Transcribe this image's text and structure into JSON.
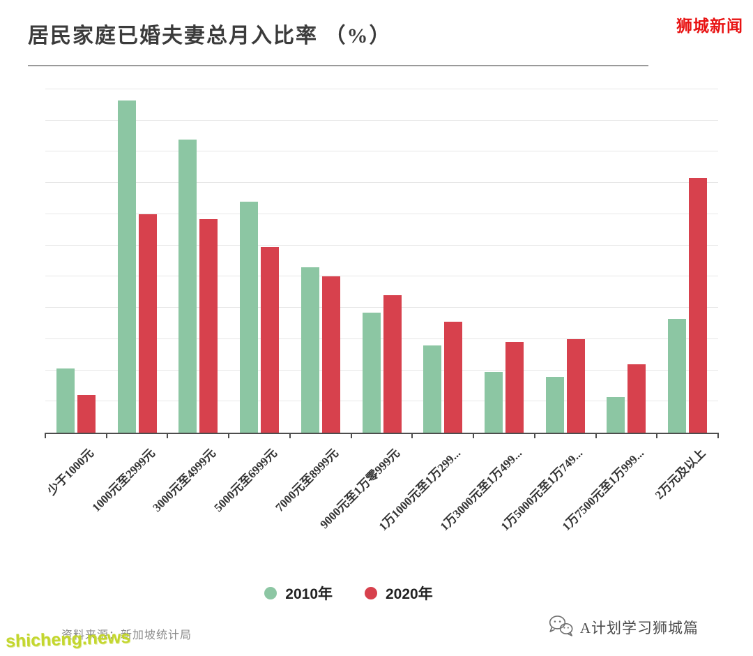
{
  "page": {
    "title": "居民家庭已婚夫妻总月入比率 （%）",
    "watermark_top_right": "狮城新闻",
    "watermark_bottom_left": "shicheng.news",
    "source_label": "资料来源：新加坡统计局",
    "footer_brand": "A计划学习狮城篇"
  },
  "chart_data": {
    "type": "bar",
    "title": "居民家庭已婚夫妻总月入比率 （%）",
    "categories": [
      "少于1000元",
      "1000元至2999元",
      "3000元至4999元",
      "5000元至6999元",
      "7000元至8999元",
      "9000元至1万零999元",
      "1万1000元至1万299...",
      "1万3000元至1万499...",
      "1万5000元至1万749...",
      "1万7500元至1万999...",
      "2万元及以上"
    ],
    "series": [
      {
        "name": "2010年",
        "color": "#8cc6a3",
        "values": [
          4.1,
          21.3,
          18.8,
          14.8,
          10.6,
          7.7,
          5.6,
          3.9,
          3.6,
          2.3,
          7.3
        ]
      },
      {
        "name": "2020年",
        "color": "#d7414d",
        "values": [
          2.4,
          14.0,
          13.7,
          11.9,
          10.0,
          8.8,
          7.1,
          5.8,
          6.0,
          4.4,
          16.3
        ]
      }
    ],
    "xlabel": "",
    "ylabel": "",
    "ylim": [
      0,
      22
    ],
    "grid_step": 2,
    "grid": true,
    "legend_position": "bottom",
    "y_axis_labels_visible": false
  },
  "colors": {
    "series_2010": "#8cc6a3",
    "series_2020": "#d7414d",
    "title_text": "#3b3b3b",
    "watermark_red": "#e81212",
    "watermark_yellow_green": "#c3d62e",
    "gridline": "#e7e7e7",
    "axis": "#4d4d4d"
  }
}
